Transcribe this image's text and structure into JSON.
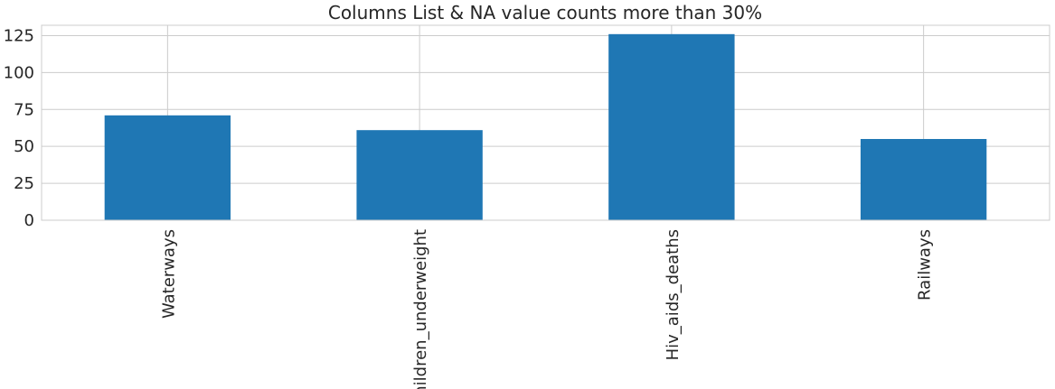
{
  "chart_data": {
    "type": "bar",
    "title": "Columns List & NA value counts more than 30%",
    "xlabel": "",
    "ylabel": "",
    "categories": [
      "Waterways",
      "Children_underweight",
      "Hiv_aids_deaths",
      "Railways"
    ],
    "values": [
      71,
      61,
      126,
      55
    ],
    "ylim": [
      0,
      132
    ],
    "yticks": [
      0,
      25,
      50,
      75,
      100,
      125
    ],
    "ytick_labels": [
      "0",
      "25",
      "50",
      "75",
      "100",
      "125"
    ],
    "grid": true,
    "legend": "none",
    "bar_color": "#1f77b4",
    "grid_color": "#cccccc",
    "text_color": "#262626"
  }
}
